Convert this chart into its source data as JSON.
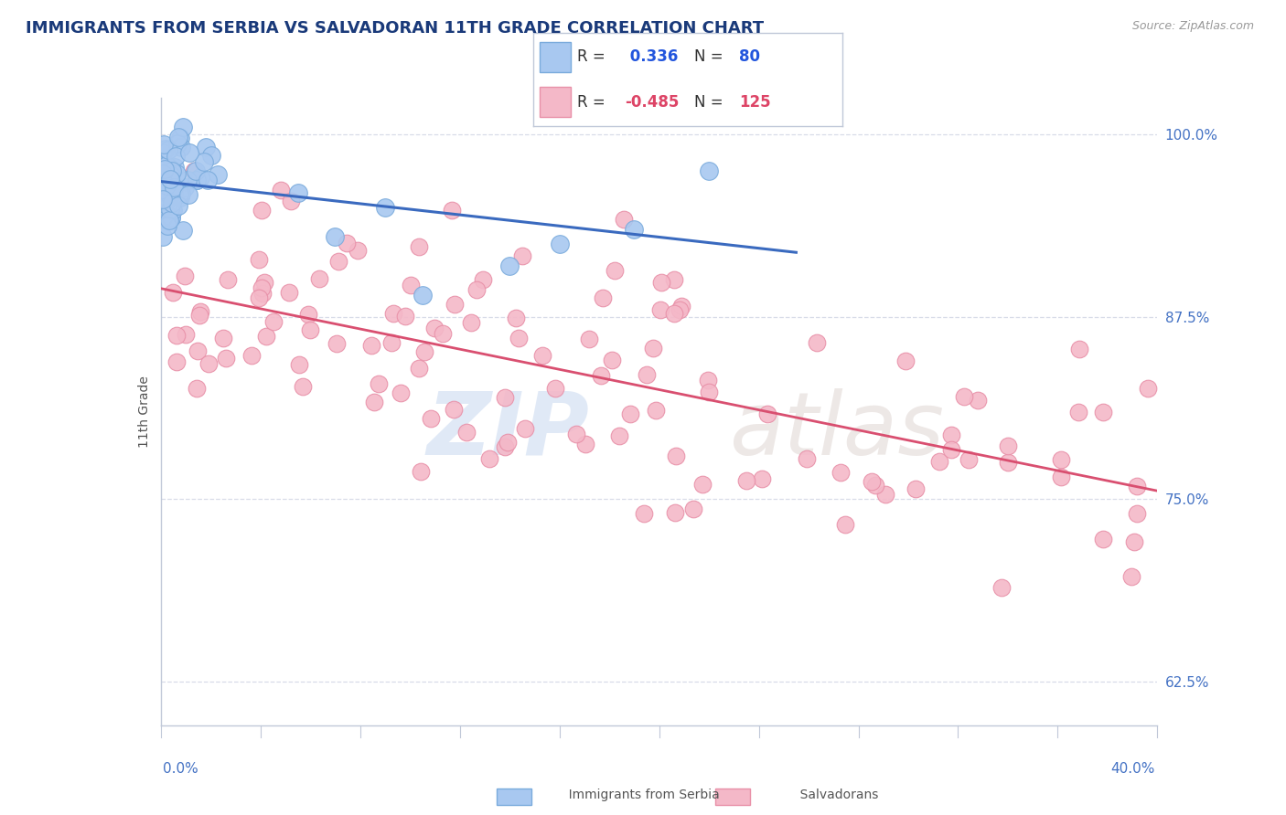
{
  "title": "IMMIGRANTS FROM SERBIA VS SALVADORAN 11TH GRADE CORRELATION CHART",
  "source_text": "Source: ZipAtlas.com",
  "ylabel": "11th Grade",
  "x_min": 0.0,
  "x_max": 0.4,
  "y_min": 0.595,
  "y_max": 1.025,
  "yticks": [
    0.625,
    0.75,
    0.875,
    1.0
  ],
  "ytick_labels": [
    "62.5%",
    "75.0%",
    "87.5%",
    "100.0%"
  ],
  "r_blue": 0.336,
  "n_blue": 80,
  "r_pink": -0.485,
  "n_pink": 125,
  "legend_label_blue": "Immigrants from Serbia",
  "legend_label_pink": "Salvadorans",
  "blue_color": "#a8c8f0",
  "blue_edge": "#7aabdc",
  "pink_color": "#f4b8c8",
  "pink_edge": "#e890a8",
  "blue_line_color": "#3a6abf",
  "pink_line_color": "#d94f70",
  "background_color": "#ffffff",
  "grid_color": "#d8dce8",
  "title_color": "#1a3a7a",
  "axis_label_color": "#4472C4",
  "tick_label_color": "#4472C4"
}
